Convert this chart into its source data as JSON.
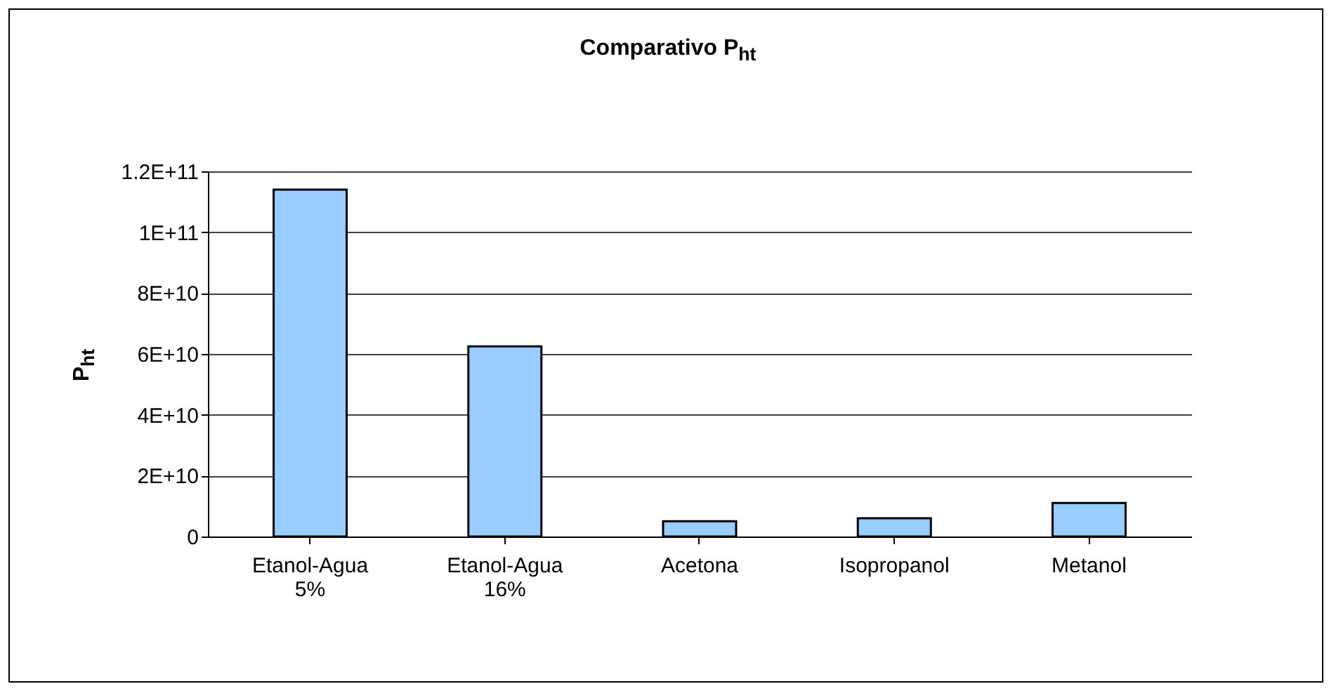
{
  "chart_data": {
    "type": "bar",
    "title": "Comparativo P$_{ht}$",
    "ylabel": "P$_{ht}$",
    "categories": [
      "Etanol-Agua 5%",
      "Etanol-Agua 16%",
      "Acetona",
      "Isopropanol",
      "Metanol"
    ],
    "values": [
      114000000000,
      62500000000,
      5000000000,
      6000000000,
      11000000000
    ],
    "color": "#99ccff",
    "ylim": [
      0,
      120000000000
    ],
    "yticks": [
      0,
      {
        "value": 20000000000,
        "label": "2E+10"
      },
      {
        "value": 40000000000,
        "label": "4E+10"
      },
      {
        "value": 60000000000,
        "label": "6E+10"
      },
      {
        "value": 80000000000,
        "label": "8E+10"
      },
      {
        "value": 100000000000,
        "label": "1E+11"
      },
      {
        "value": 120000000000,
        "label": "1.2E+11"
      }
    ],
    "grid": "y"
  }
}
